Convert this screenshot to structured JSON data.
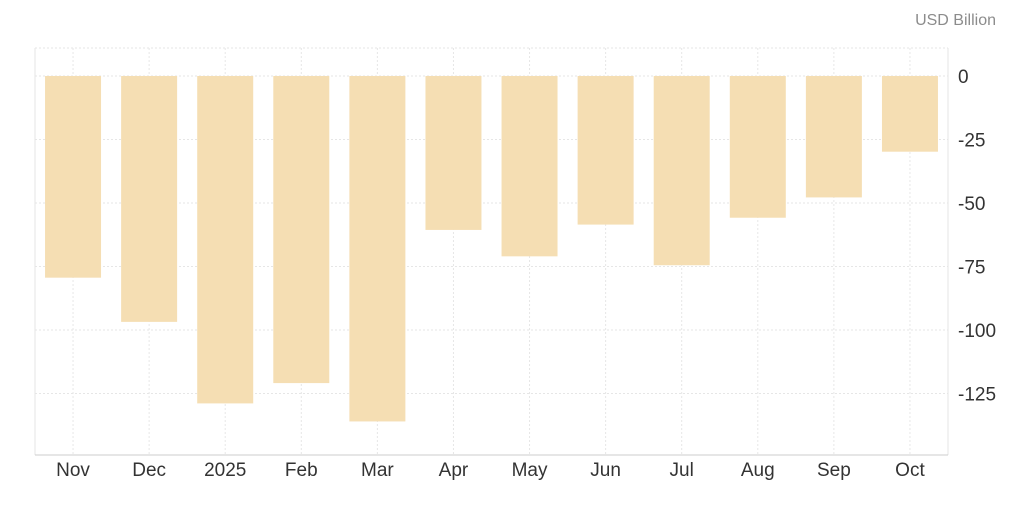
{
  "chart_data": {
    "type": "bar",
    "unit_label": "USD Billion",
    "categories": [
      "Nov",
      "Dec",
      "2025",
      "Feb",
      "Mar",
      "Apr",
      "May",
      "Jun",
      "Jul",
      "Aug",
      "Sep",
      "Oct"
    ],
    "values": [
      -79.4,
      -96.8,
      -128.9,
      -120.9,
      -136.0,
      -60.6,
      -71.0,
      -58.5,
      -74.5,
      -55.8,
      -47.8,
      -29.8
    ],
    "ylim": [
      -150,
      10
    ],
    "yticks": [
      0,
      -25,
      -50,
      -75,
      -100,
      -125
    ],
    "ytick_labels": [
      "0",
      "-25",
      "-50",
      "-75",
      "-100",
      "-125"
    ],
    "grid": true,
    "bar_color": "#f5deb3",
    "grid_color": "#e6e6e6",
    "axis_color": "#cccccc",
    "text_color": "#333333"
  }
}
